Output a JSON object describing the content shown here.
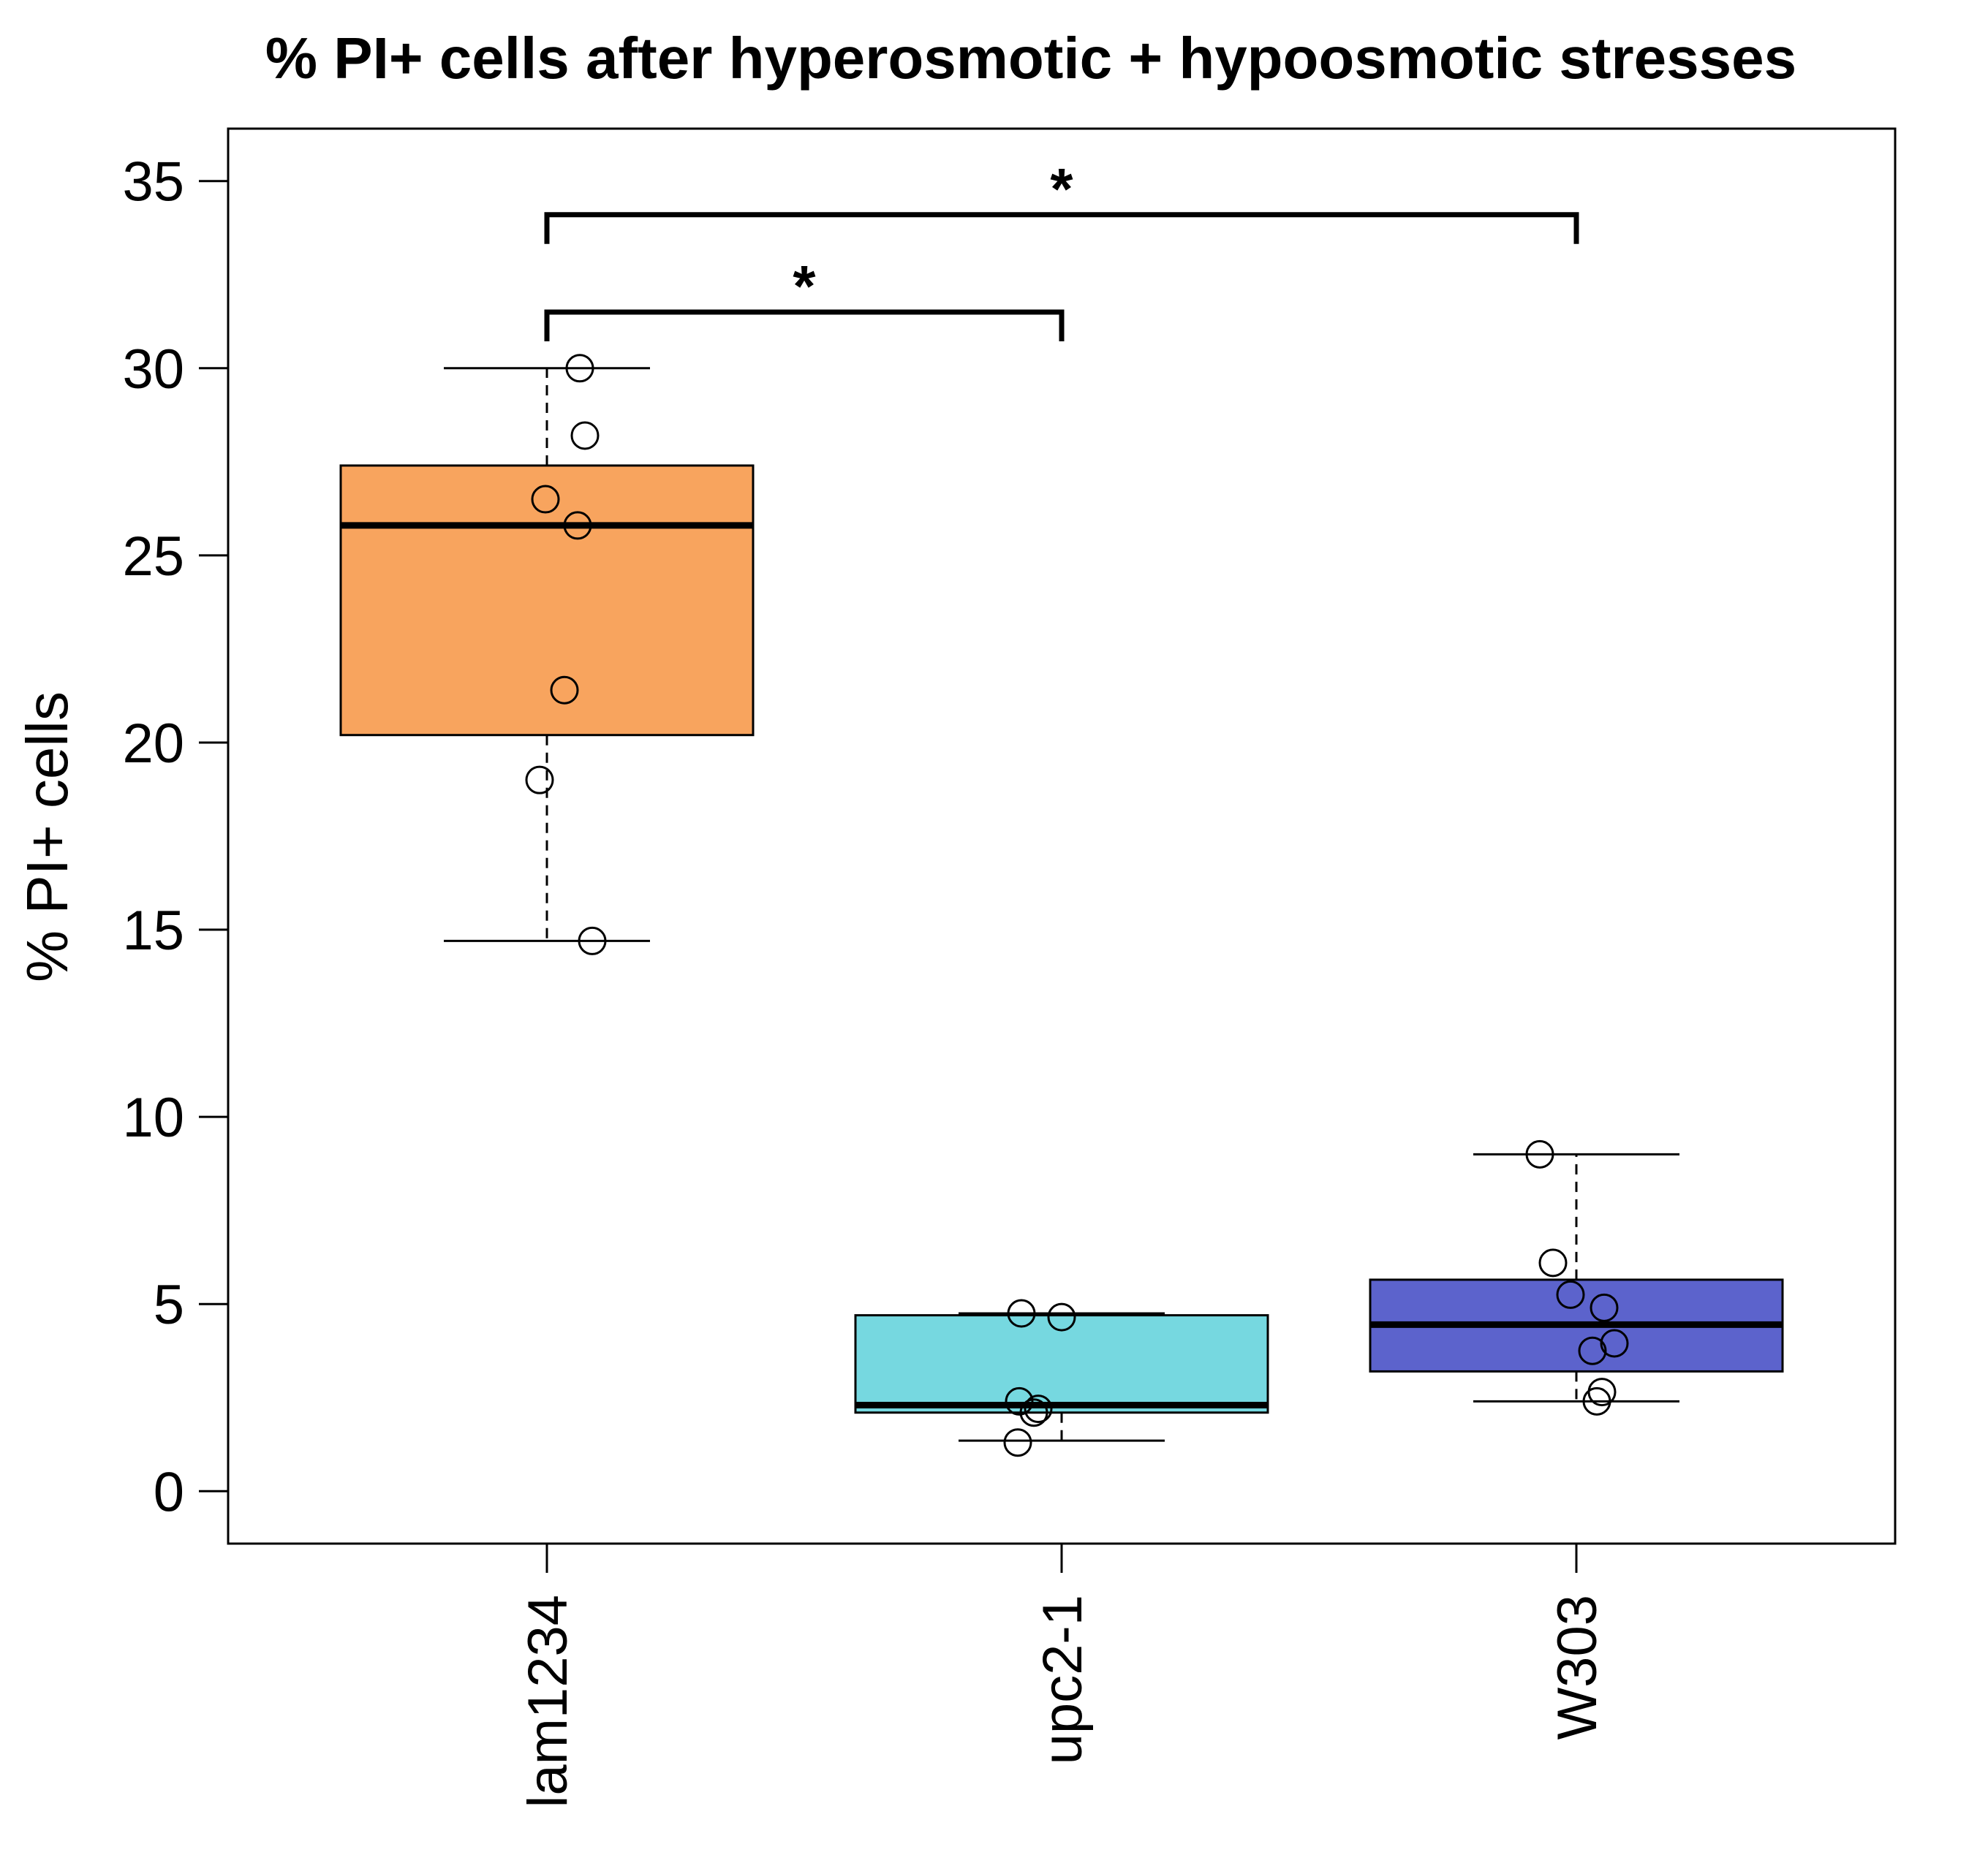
{
  "chart_data": {
    "type": "boxplot",
    "title": "% PI+ cells after hyperosmotic + hypoosmotic stresses",
    "xlabel": "",
    "ylabel": "% PI+ cells",
    "ylim": [
      -1.4,
      36.4
    ],
    "yticks": [
      "0",
      "5",
      "10",
      "15",
      "20",
      "25",
      "30",
      "35"
    ],
    "grid": false,
    "categories": [
      "lam1234",
      "upc2-1",
      "W303"
    ],
    "colors": {
      "lam1234": "#F8A45E",
      "upc2-1": "#76D8E0",
      "W303": "#5C63CC"
    },
    "boxes": [
      {
        "name": "lam1234",
        "min": 14.7,
        "q1": 20.2,
        "median": 25.8,
        "q3": 27.4,
        "max": 30.0
      },
      {
        "name": "upc2-1",
        "min": 1.35,
        "q1": 2.1,
        "median": 2.3,
        "q3": 4.7,
        "max": 4.75
      },
      {
        "name": "W303",
        "min": 2.4,
        "q1": 3.2,
        "median": 4.45,
        "q3": 5.65,
        "max": 9.0
      }
    ],
    "points": [
      {
        "category": "lam1234",
        "values": [
          30.0,
          28.2,
          26.5,
          25.8,
          21.4,
          19.0,
          14.7
        ]
      },
      {
        "category": "upc2-1",
        "values": [
          4.75,
          4.65,
          2.4,
          2.2,
          2.1,
          1.3
        ]
      },
      {
        "category": "W303",
        "values": [
          9.0,
          6.1,
          5.25,
          4.9,
          3.95,
          3.75,
          2.65,
          2.4
        ]
      }
    ],
    "significance": [
      {
        "from": "lam1234",
        "to": "upc2-1",
        "y": 31.5,
        "label": "*"
      },
      {
        "from": "lam1234",
        "to": "W303",
        "y": 34.1,
        "label": "*"
      }
    ]
  }
}
